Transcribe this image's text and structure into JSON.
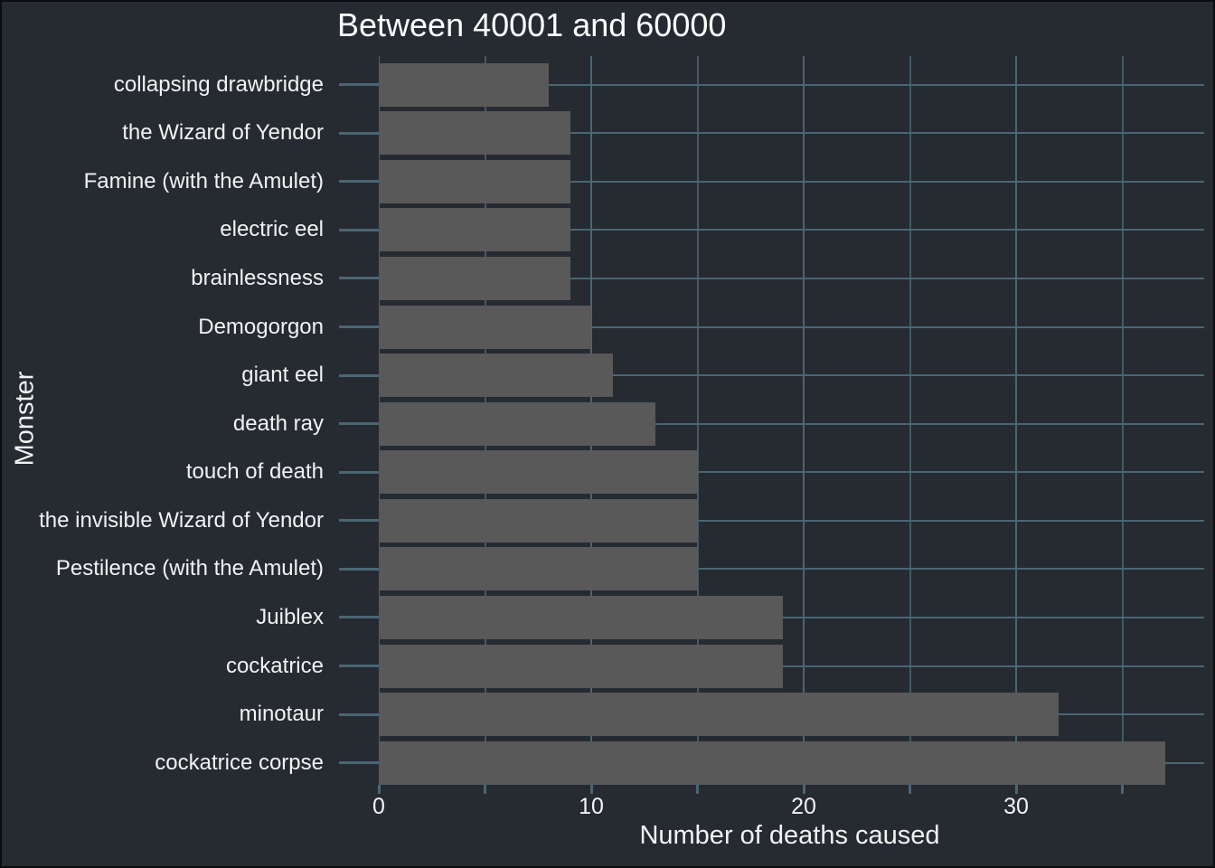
{
  "chart_data": {
    "type": "bar",
    "orientation": "horizontal",
    "title": "Between 40001 and 60000",
    "xlabel": "Number of deaths caused",
    "ylabel": "Monster",
    "categories": [
      "collapsing drawbridge",
      "the Wizard of Yendor",
      "Famine (with the Amulet)",
      "electric eel",
      "brainlessness",
      "Demogorgon",
      "giant eel",
      "death ray",
      "touch of death",
      "the invisible Wizard of Yendor",
      "Pestilence (with the Amulet)",
      "Juiblex",
      "cockatrice",
      "minotaur",
      "cockatrice corpse"
    ],
    "values": [
      8,
      9,
      9,
      9,
      9,
      10,
      11,
      13,
      15,
      15,
      15,
      19,
      19,
      32,
      37
    ],
    "x_major_ticks": [
      0,
      10,
      20,
      30
    ],
    "x_minor_ticks": [
      5,
      15,
      25,
      35
    ],
    "x_tick_labels": [
      "0",
      "10",
      "20",
      "30"
    ],
    "xlim": [
      0,
      38.85
    ],
    "grid": true,
    "legend": false,
    "colors": {
      "background": "#262a31",
      "bar": "#595959",
      "grid_major": "#4a6673",
      "grid_minor": "#43ximum5b66",
      "tick": "#4a6673",
      "text": "#f2f2f2",
      "title_text": "#ffffff",
      "border": "#0b0d10"
    }
  }
}
